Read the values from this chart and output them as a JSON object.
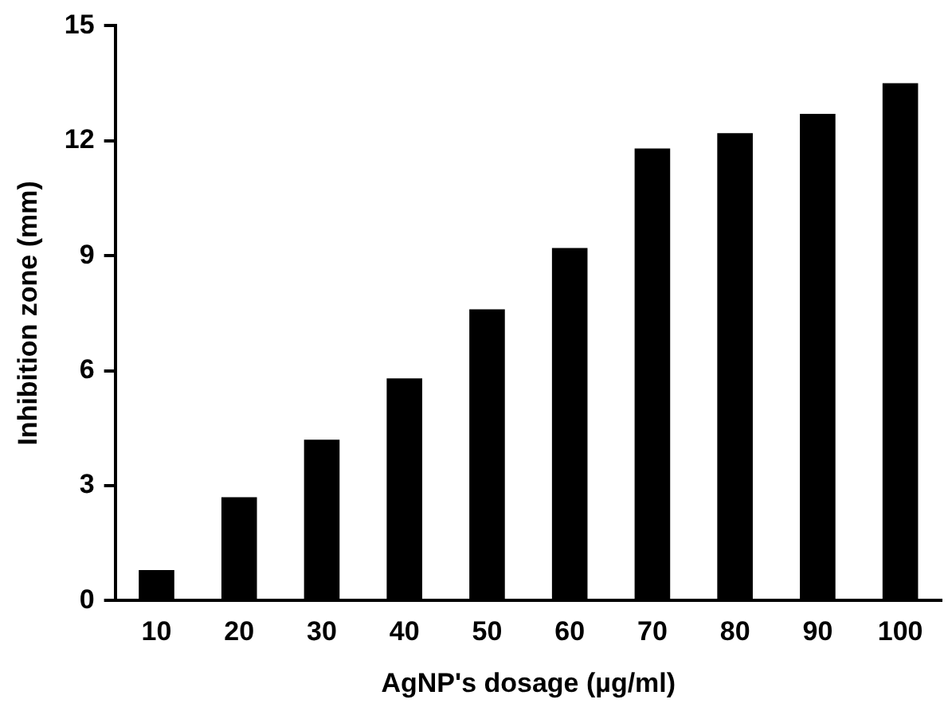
{
  "chart_data": {
    "type": "bar",
    "xlabel": "AgNP's dosage (µg/ml)",
    "ylabel": "Inhibition zone (mm)",
    "categories": [
      "10",
      "20",
      "30",
      "40",
      "50",
      "60",
      "70",
      "80",
      "90",
      "100"
    ],
    "values": [
      0.8,
      2.7,
      4.2,
      5.8,
      7.6,
      9.2,
      11.8,
      12.2,
      12.7,
      13.5
    ],
    "color": "#000000",
    "ylim": [
      0,
      15
    ],
    "yticks": [
      0,
      3,
      6,
      9,
      12,
      15
    ],
    "grid": false,
    "legend": false
  }
}
